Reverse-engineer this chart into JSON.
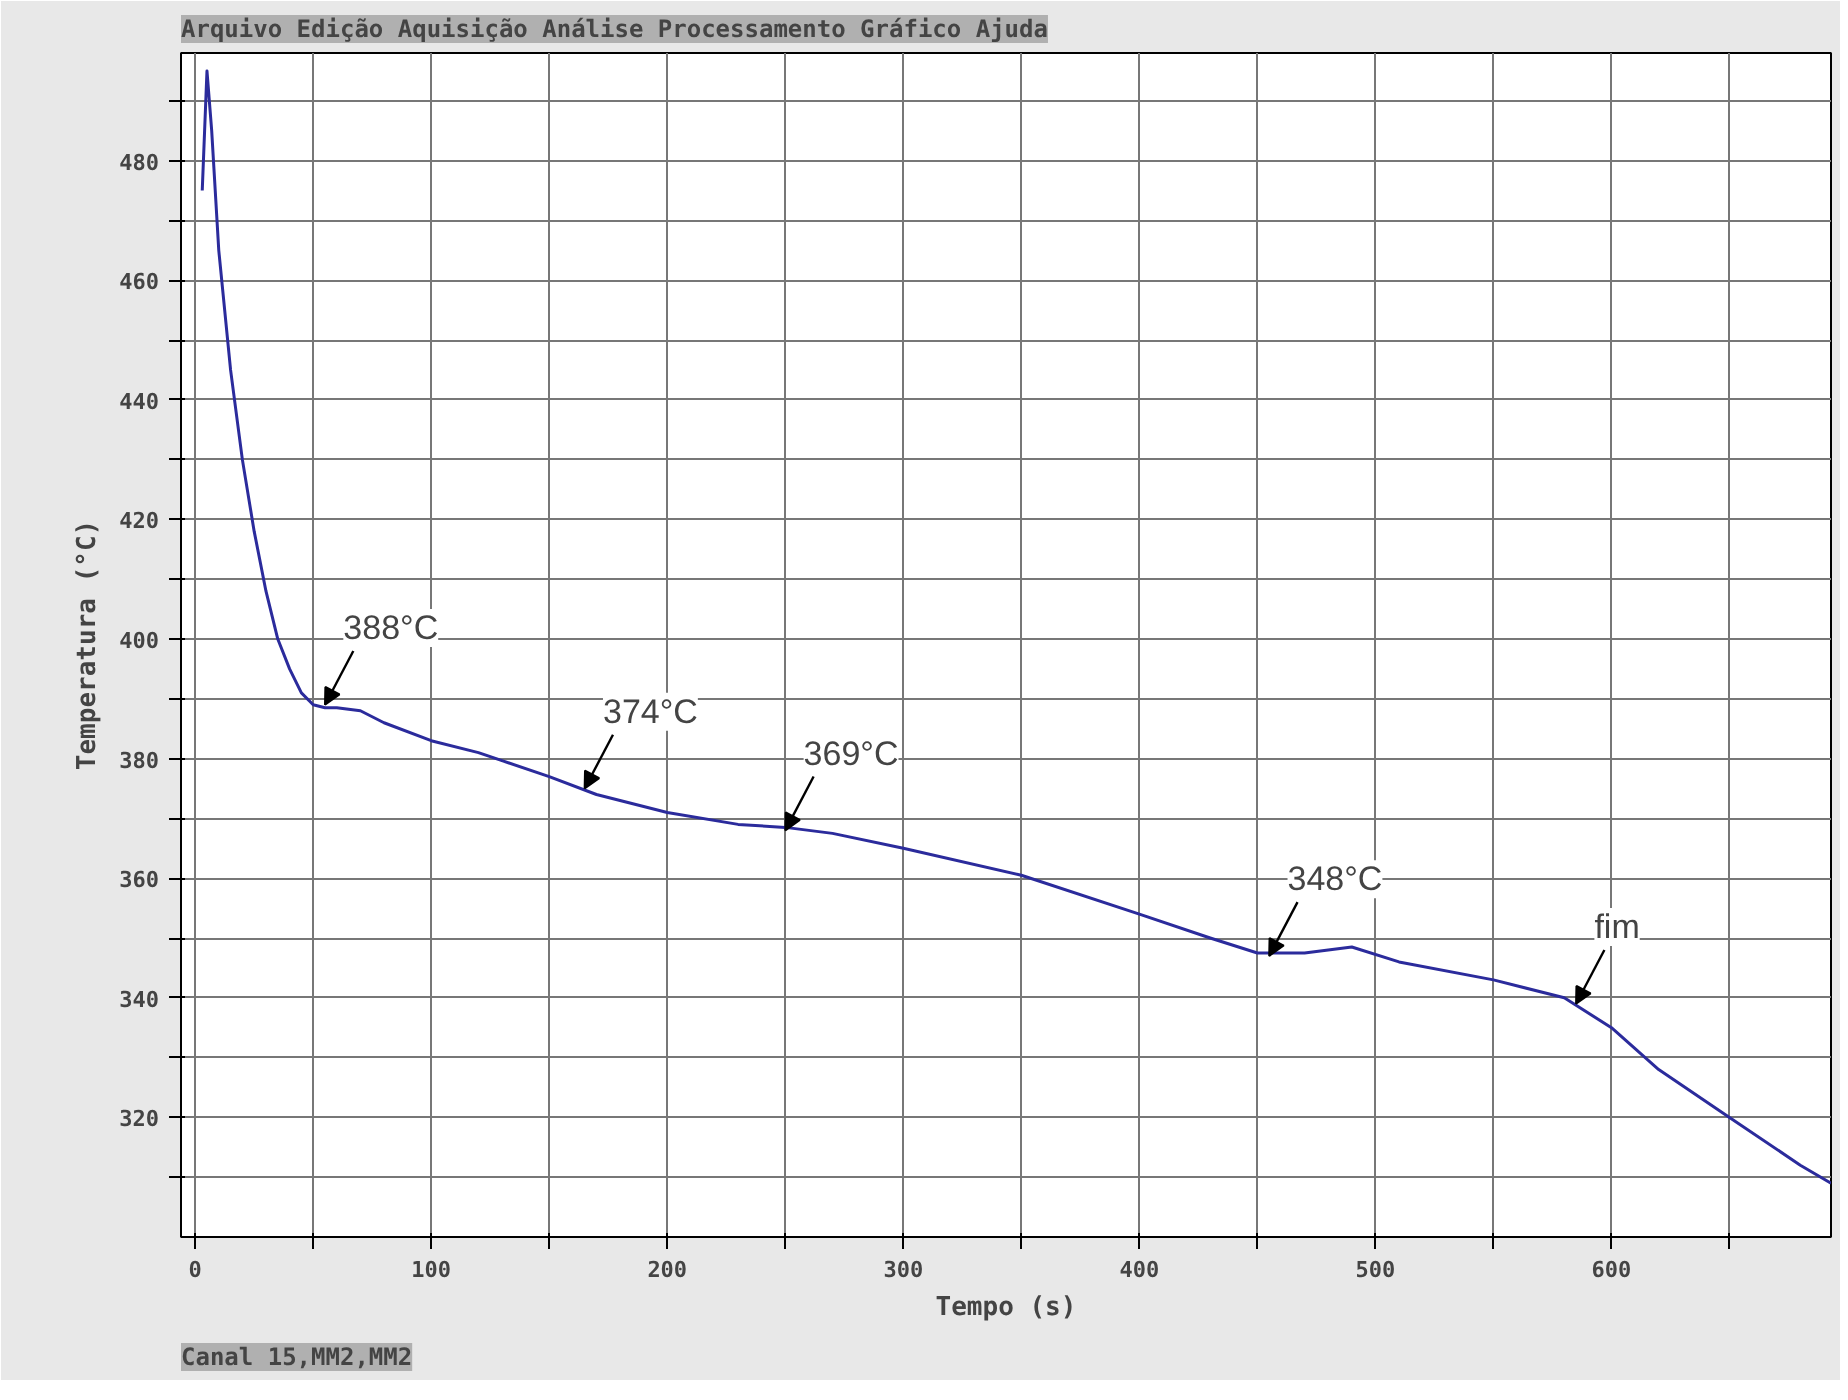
{
  "chart_data": {
    "type": "line",
    "xlabel": "Tempo (s)",
    "ylabel": "Temperatura (°C)",
    "x": [
      3,
      5,
      7,
      10,
      15,
      20,
      25,
      30,
      35,
      40,
      45,
      50,
      55,
      60,
      70,
      80,
      100,
      120,
      150,
      170,
      200,
      230,
      250,
      270,
      300,
      350,
      400,
      430,
      450,
      470,
      490,
      510,
      550,
      580,
      600,
      620,
      650,
      680,
      693
    ],
    "series": [
      {
        "color": "#2b2b9c",
        "values": [
          475,
          495,
          485,
          465,
          445,
          430,
          418,
          408,
          400,
          395,
          391,
          389,
          388.5,
          388.5,
          388,
          386,
          383,
          381,
          377,
          374,
          371,
          369,
          368.5,
          367.5,
          365,
          360.5,
          354,
          350,
          347.5,
          347.5,
          348.5,
          346,
          343,
          340,
          335,
          328,
          320,
          312,
          309
        ]
      }
    ],
    "xlim": [
      -6,
      693
    ],
    "ylim": [
      300,
      498
    ],
    "xticks": [
      0,
      {
        "value": 50,
        "label": null
      },
      100,
      {
        "value": 150,
        "label": null
      },
      200,
      {
        "value": 250,
        "label": null
      },
      300,
      {
        "value": 350,
        "label": null
      },
      400,
      {
        "value": 450,
        "label": null
      },
      500,
      {
        "value": 550,
        "label": null
      },
      600,
      {
        "value": 650,
        "label": null
      }
    ],
    "yticks": [
      {
        "value": 310,
        "label": null
      },
      320,
      {
        "value": 330,
        "label": null
      },
      340,
      {
        "value": 350,
        "label": null
      },
      360,
      {
        "value": 370,
        "label": null
      },
      380,
      {
        "value": 390,
        "label": null
      },
      400,
      {
        "value": 410,
        "label": null
      },
      420,
      {
        "value": 430,
        "label": null
      },
      440,
      {
        "value": 450,
        "label": null
      },
      460,
      {
        "value": 470,
        "label": null
      },
      480,
      {
        "value": 490,
        "label": null
      }
    ],
    "grid": true,
    "marker": "none",
    "line_style": "solid",
    "annotations": [
      "Arquivo Edição Aquisição Análise Processamento Gráfico Ajuda",
      {
        "text": "388°C",
        "x": 55,
        "y": 389
      },
      {
        "text": "374°C",
        "x": 165,
        "y": 375
      },
      {
        "text": "369°C",
        "x": 250,
        "y": 368
      },
      {
        "text": "348°C",
        "x": 455,
        "y": 347
      },
      {
        "text": "fim",
        "x": 585,
        "y": 339
      },
      "Canal 15,MM2,MM2"
    ]
  }
}
